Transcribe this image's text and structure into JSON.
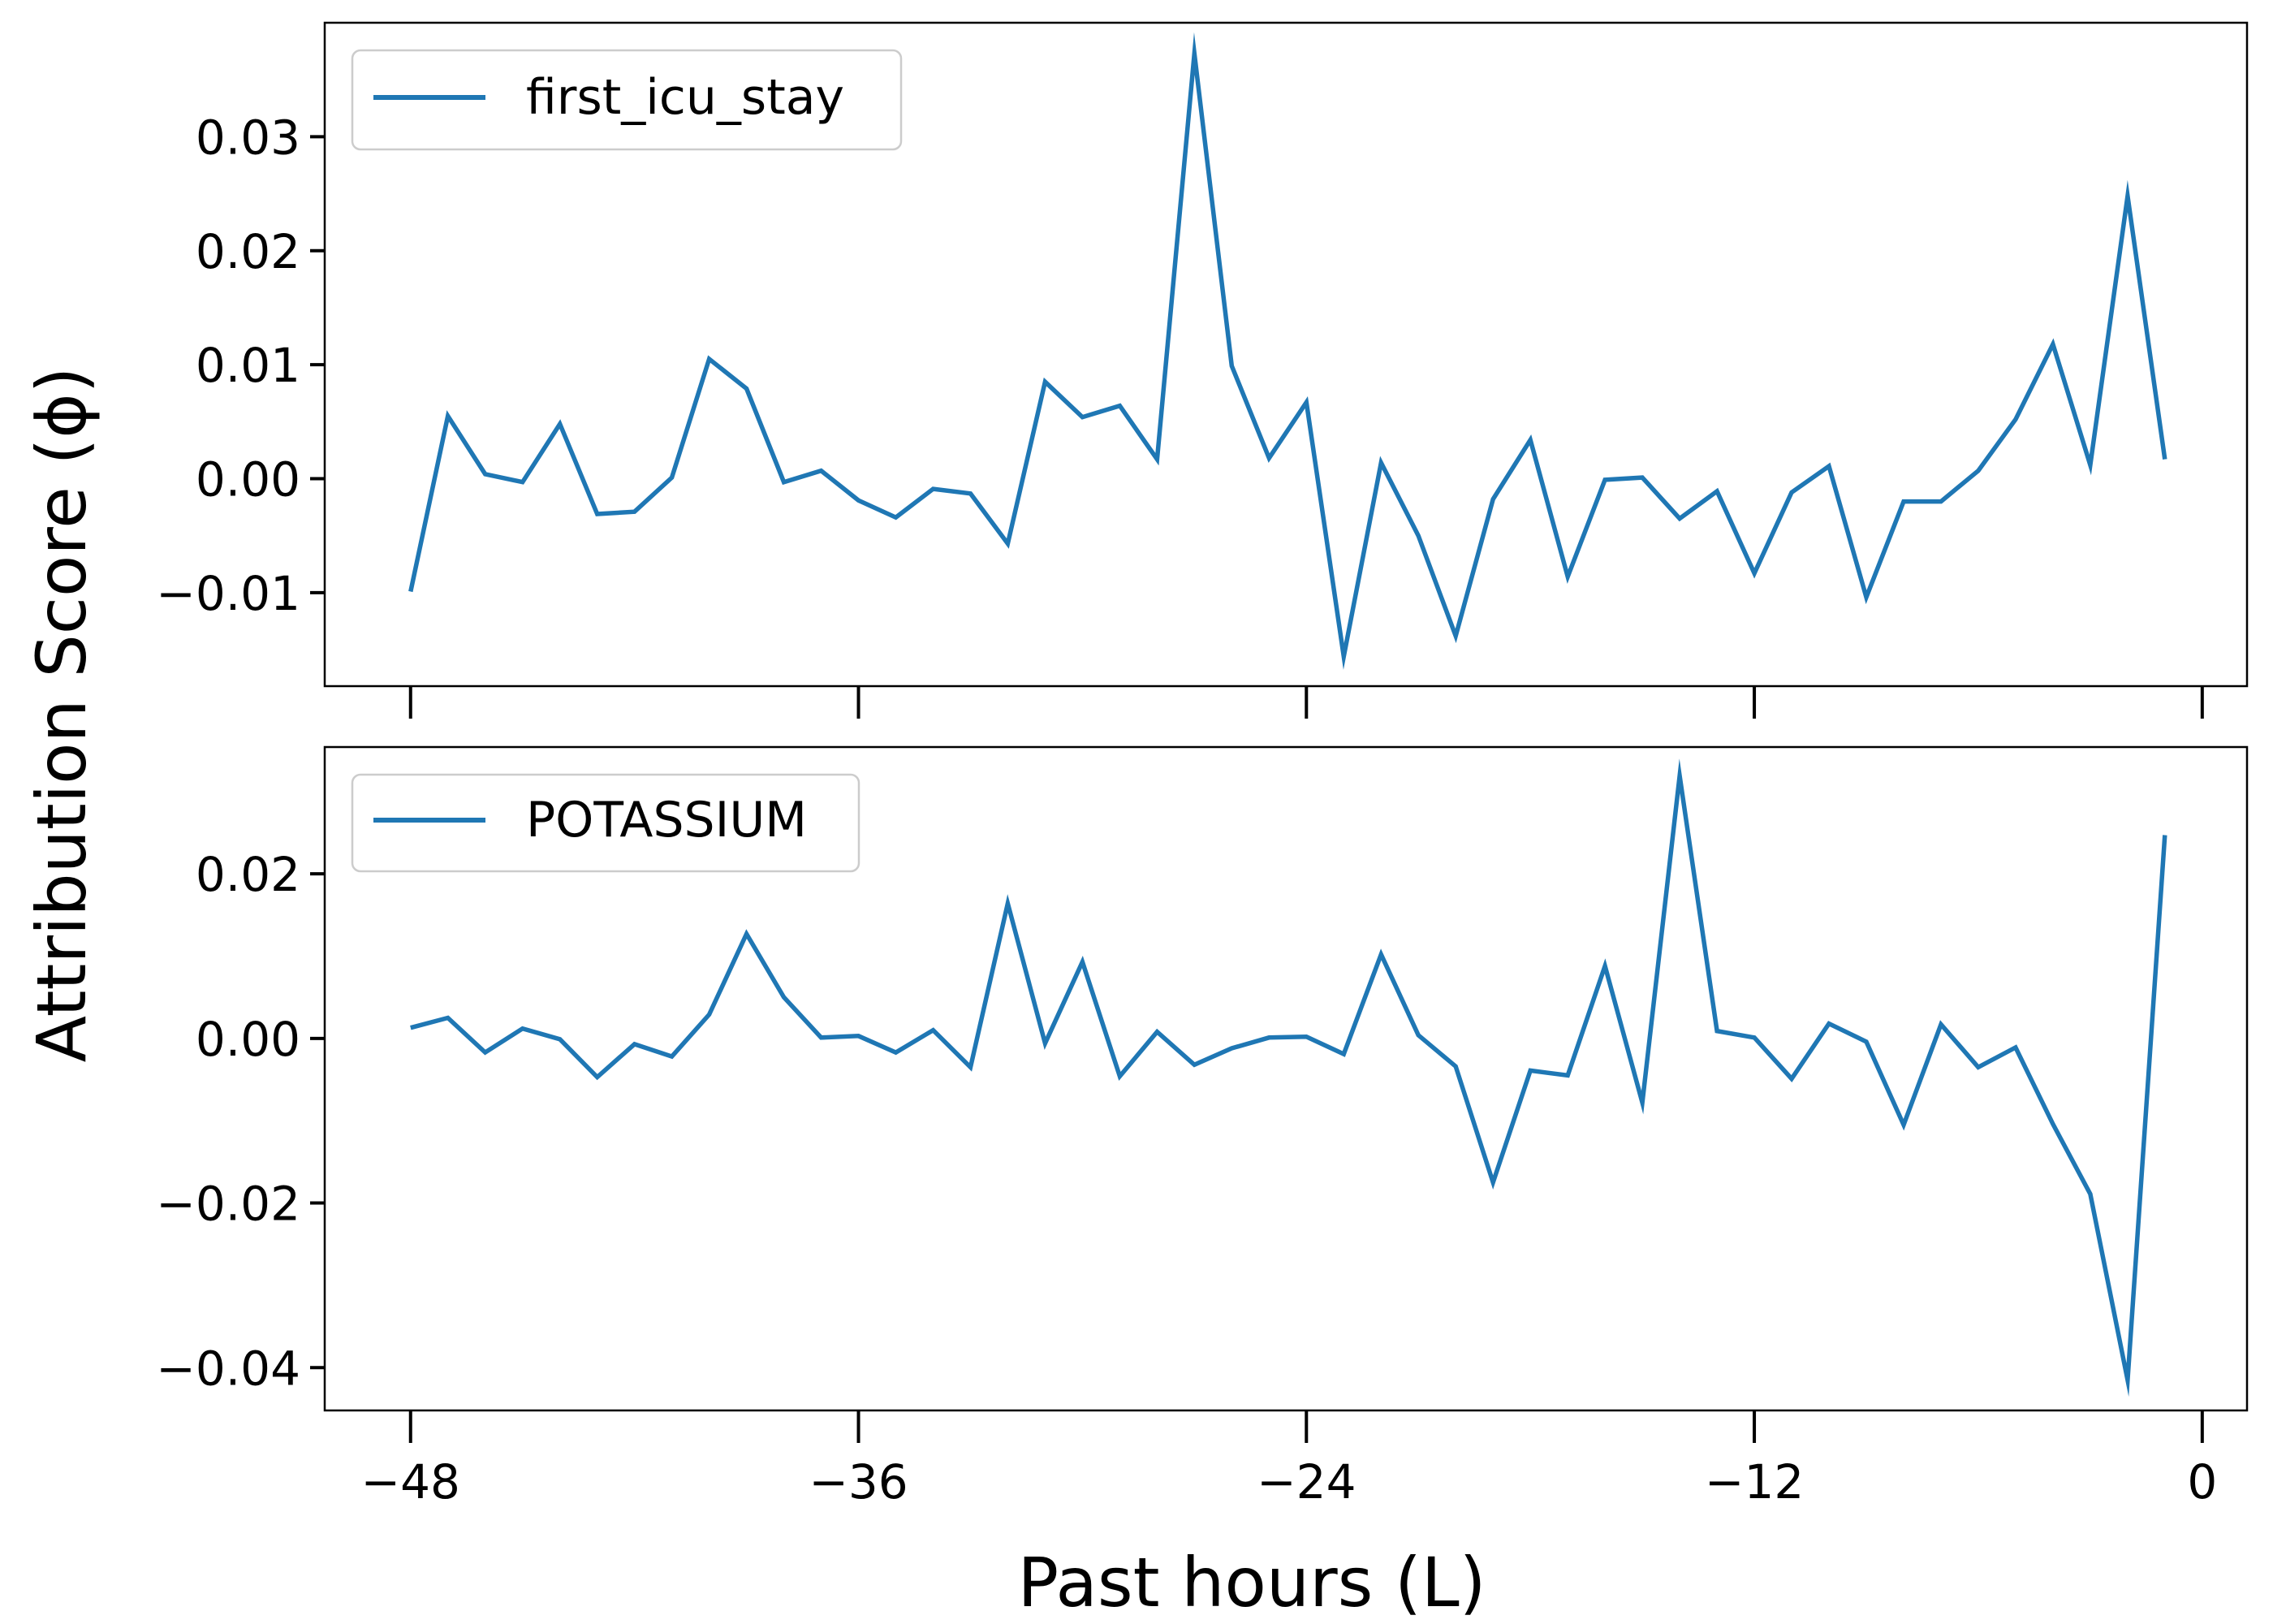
{
  "chart_data": {
    "type": "line",
    "layout": "two stacked panels sharing x axis",
    "xlabel": "Past hours (L)",
    "ylabel": "Attribution Score (ϕ)",
    "xlim": [
      -50.3,
      1.2
    ],
    "xticks": [
      -48,
      -36,
      -24,
      -12,
      0
    ],
    "xtick_labels": [
      "−48",
      "−36",
      "−24",
      "−12",
      "0"
    ],
    "x": [
      -48,
      -47,
      -46,
      -45,
      -44,
      -43,
      -42,
      -41,
      -40,
      -39,
      -38,
      -37,
      -36,
      -35,
      -34,
      -33,
      -32,
      -31,
      -30,
      -29,
      -28,
      -27,
      -26,
      -25,
      -24,
      -23,
      -22,
      -21,
      -20,
      -19,
      -18,
      -17,
      -16,
      -15,
      -14,
      -13,
      -12,
      -11,
      -10,
      -9,
      -8,
      -7,
      -6,
      -5,
      -4,
      -3,
      -2,
      -1
    ],
    "color": "#1f77b4",
    "legend_placement": "upper-left",
    "grid": false,
    "panels": [
      {
        "series": [
          {
            "name": "first_icu_stay",
            "values": [
              -0.0099,
              0.0055,
              0.0004,
              -0.0003,
              0.0048,
              -0.0031,
              -0.0029,
              0.0001,
              0.0105,
              0.0079,
              -0.0003,
              0.0007,
              -0.0019,
              -0.0034,
              -0.0009,
              -0.0013,
              -0.0057,
              0.0085,
              0.0054,
              0.0064,
              0.0017,
              0.0373,
              0.0099,
              0.0018,
              0.0067,
              -0.0156,
              0.0014,
              -0.005,
              -0.0138,
              -0.0018,
              0.0034,
              -0.0086,
              -0.0001,
              0.0001,
              -0.0035,
              -0.0011,
              -0.0083,
              -0.0012,
              0.0011,
              -0.0104,
              -0.002,
              -0.002,
              0.0007,
              0.0052,
              0.0118,
              0.0012,
              0.0248,
              0.0017
            ]
          }
        ],
        "ylim": [
          -0.0182,
          0.04
        ],
        "yticks": [
          -0.01,
          0.0,
          0.01,
          0.02,
          0.03
        ],
        "ytick_labels": [
          "−0.01",
          "0.00",
          "0.01",
          "0.02",
          "0.03"
        ]
      },
      {
        "series": [
          {
            "name": "POTASSIUM",
            "values": [
              0.0013,
              0.0025,
              -0.0017,
              0.0012,
              -0.0001,
              -0.0047,
              -0.0007,
              -0.0022,
              0.0029,
              0.0127,
              0.005,
              0.0001,
              0.0003,
              -0.0017,
              0.001,
              -0.0035,
              0.0164,
              -0.0006,
              0.0093,
              -0.0046,
              0.0008,
              -0.0032,
              -0.0012,
              0.0001,
              0.0002,
              -0.0019,
              0.0102,
              0.0004,
              -0.0034,
              -0.0175,
              -0.0039,
              -0.0045,
              0.0088,
              -0.0078,
              0.0319,
              0.0009,
              0.0001,
              -0.0049,
              0.0018,
              -0.0004,
              -0.0105,
              0.0017,
              -0.0035,
              -0.0011,
              -0.0104,
              -0.0189,
              -0.0415,
              0.0247
            ]
          }
        ],
        "ylim": [
          -0.0452,
          0.0354
        ],
        "yticks": [
          -0.04,
          -0.02,
          0.0,
          0.02
        ],
        "ytick_labels": [
          "−0.04",
          "−0.02",
          "0.00",
          "0.02"
        ]
      }
    ]
  }
}
